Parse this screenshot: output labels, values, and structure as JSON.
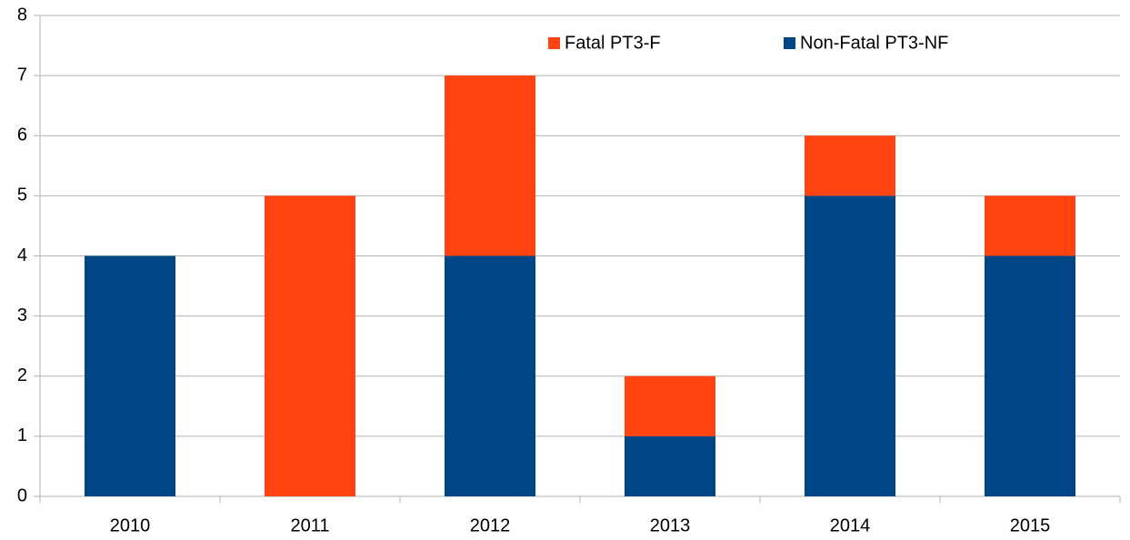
{
  "chart_data": {
    "type": "stacked_bar",
    "categories": [
      "2010",
      "2011",
      "2012",
      "2013",
      "2014",
      "2015"
    ],
    "series": [
      {
        "name": "Fatal PT3-F",
        "color": "#ff4411",
        "values": [
          0,
          5,
          3,
          1,
          1,
          1
        ]
      },
      {
        "name": "Non-Fatal PT3-NF",
        "color": "#004586",
        "values": [
          4,
          0,
          4,
          1,
          5,
          4
        ]
      }
    ],
    "ylim": [
      0,
      8
    ],
    "yticks": [
      0,
      1,
      2,
      3,
      4,
      5,
      6,
      7,
      8
    ],
    "grid": true,
    "legend": "top"
  }
}
